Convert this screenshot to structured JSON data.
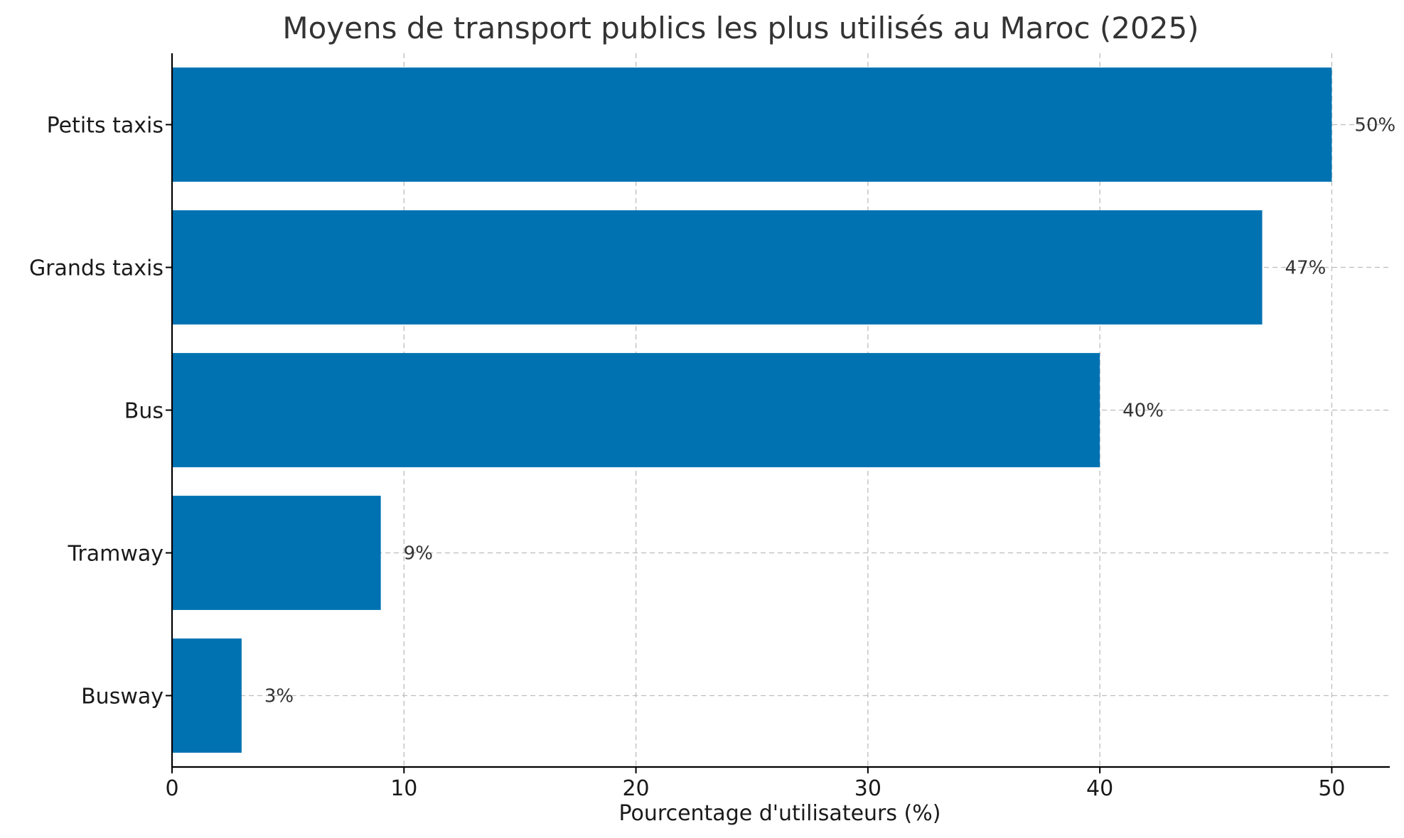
{
  "chart_data": {
    "type": "bar",
    "orientation": "horizontal",
    "title": "Moyens de transport publics les plus utilisés au Maroc (2025)",
    "xlabel": "Pourcentage d'utilisateurs (%)",
    "ylabel": "",
    "categories": [
      "Petits taxis",
      "Grands taxis",
      "Bus",
      "Tramway",
      "Busway"
    ],
    "values": [
      50,
      47,
      40,
      9,
      3
    ],
    "value_labels": [
      "50%",
      "47%",
      "40%",
      "9%",
      "3%"
    ],
    "xlim": [
      0,
      52.5
    ],
    "xticks": [
      0,
      10,
      20,
      30,
      40,
      50
    ],
    "grid": true,
    "bar_color": "#0072b2"
  }
}
